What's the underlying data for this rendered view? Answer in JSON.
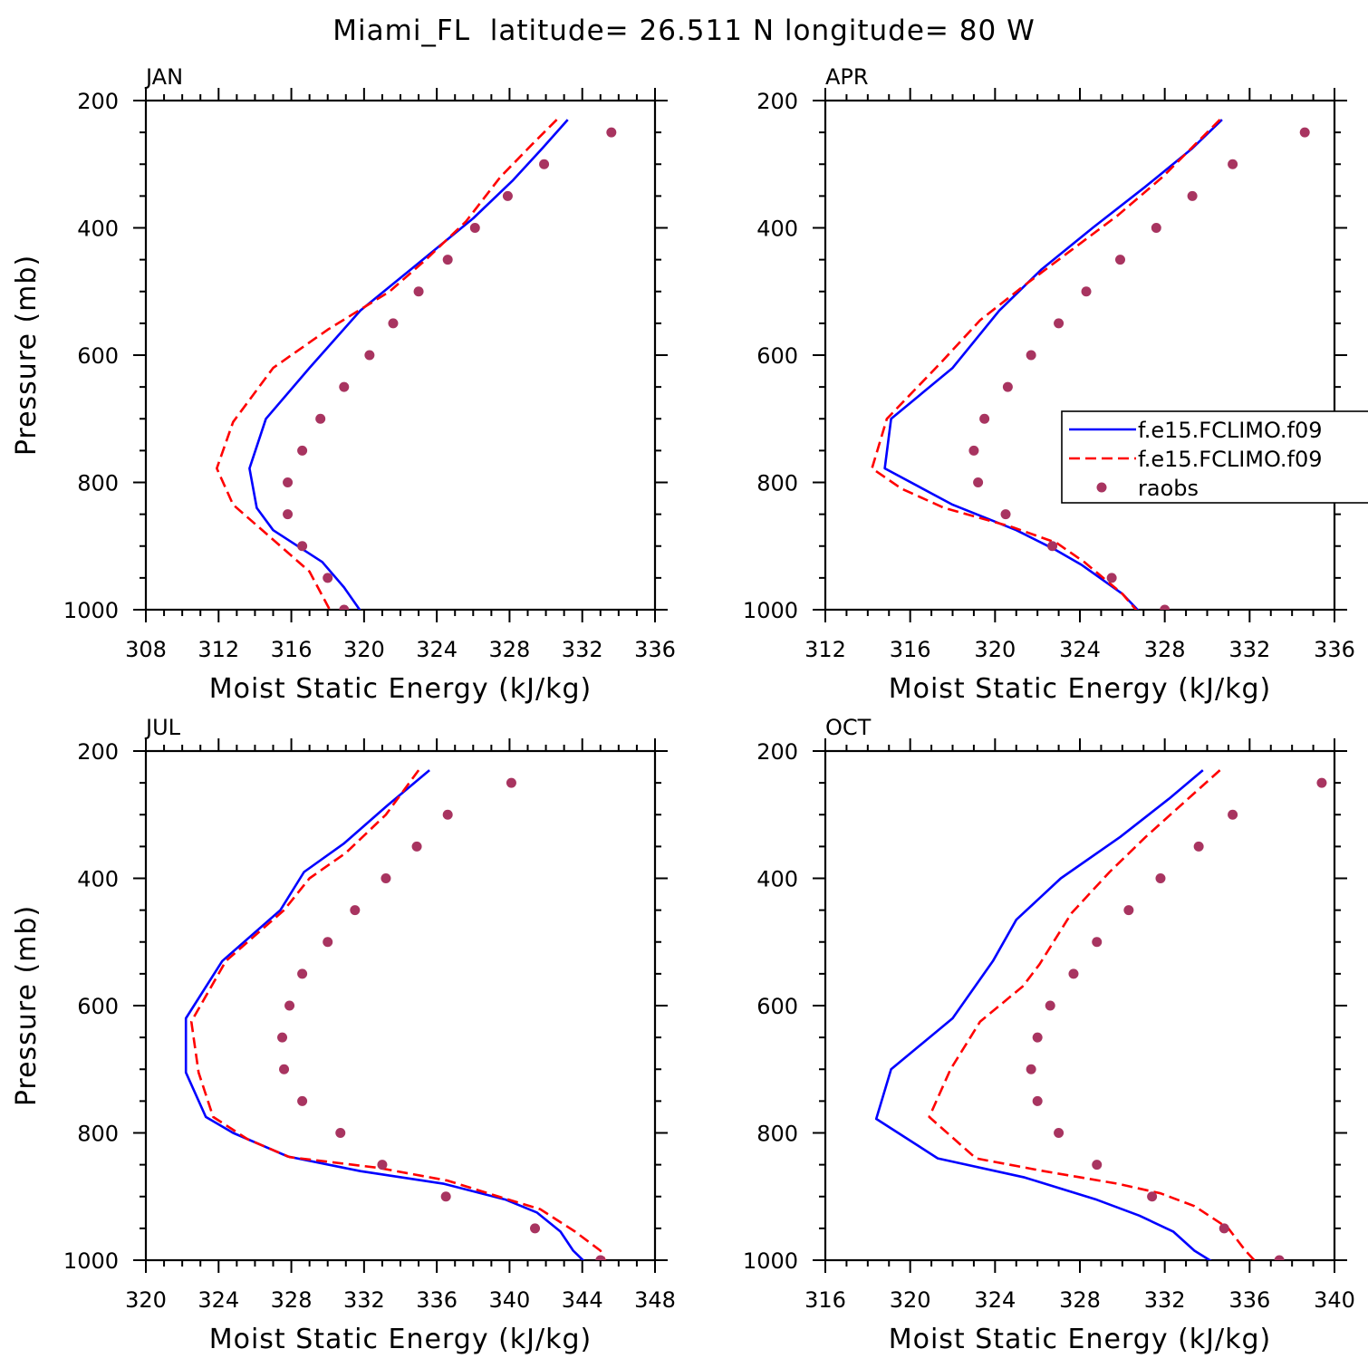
{
  "title": "Miami_FL  latitude= 26.511 N longitude= 80 W",
  "colors": {
    "model_a": "#0000ff",
    "model_b": "#ff0000",
    "raobs": "#a83460"
  },
  "legend": {
    "panel": 1,
    "entries": [
      "f.e15.FCLIMO.f09",
      "f.e15.FCLIMO.f09",
      "raobs"
    ]
  },
  "chart_data": [
    {
      "type": "line",
      "label": "JAN",
      "xlabel": "Moist Static Energy (kJ/kg)",
      "ylabel": "Pressure (mb)",
      "xlim": [
        308,
        336
      ],
      "xticks": [
        308,
        312,
        316,
        320,
        324,
        328,
        332,
        336
      ],
      "ylim": [
        1000,
        200
      ],
      "yticks": [
        200,
        400,
        600,
        800,
        1000
      ],
      "series": [
        {
          "key": "model_a",
          "style": "solid",
          "x": [
            331.2,
            329.8,
            328.2,
            326.0,
            322.8,
            319.8,
            317.0,
            314.6,
            313.7,
            314.1,
            315.0,
            317.7,
            318.9,
            320.0
          ],
          "y": [
            230,
            275,
            325,
            385,
            460,
            530,
            620,
            700,
            778,
            840,
            875,
            925,
            965,
            1010
          ]
        },
        {
          "key": "model_b",
          "style": "dashed",
          "x": [
            330.6,
            329.2,
            327.5,
            325.6,
            323.4,
            321.4,
            318.0,
            315.0,
            312.8,
            311.9,
            312.8,
            314.8,
            317.0,
            318.3
          ],
          "y": [
            230,
            270,
            320,
            390,
            450,
            500,
            560,
            620,
            705,
            778,
            835,
            885,
            940,
            1010
          ]
        },
        {
          "key": "raobs",
          "style": "points",
          "x": [
            333.6,
            329.9,
            327.9,
            326.1,
            324.6,
            323.0,
            321.6,
            320.3,
            318.9,
            317.6,
            316.6,
            315.8,
            315.8,
            316.6,
            318.0,
            318.9
          ],
          "y": [
            250,
            300,
            350,
            400,
            450,
            500,
            550,
            600,
            650,
            700,
            750,
            800,
            850,
            900,
            950,
            1000
          ]
        }
      ]
    },
    {
      "type": "line",
      "label": "APR",
      "xlabel": "Moist Static Energy (kJ/kg)",
      "ylabel": "",
      "xlim": [
        312,
        336
      ],
      "xticks": [
        312,
        316,
        320,
        324,
        328,
        332,
        336
      ],
      "ylim": [
        1000,
        200
      ],
      "yticks": [
        200,
        400,
        600,
        800,
        1000
      ],
      "series": [
        {
          "key": "model_a",
          "style": "solid",
          "x": [
            330.7,
            329.3,
            327.1,
            324.6,
            322.2,
            320.2,
            318.0,
            315.1,
            314.8,
            318.0,
            321.0,
            322.8,
            324.1,
            326.0,
            327.0
          ],
          "y": [
            230,
            275,
            335,
            400,
            465,
            530,
            620,
            700,
            778,
            835,
            875,
            905,
            930,
            975,
            1010
          ]
        },
        {
          "key": "model_b",
          "style": "dashed",
          "x": [
            330.6,
            329.4,
            327.9,
            325.8,
            323.6,
            321.4,
            319.3,
            317.5,
            314.9,
            314.2,
            315.6,
            317.6,
            320.8,
            322.9,
            324.2,
            326.0,
            326.9
          ],
          "y": [
            230,
            270,
            320,
            380,
            435,
            490,
            545,
            610,
            700,
            778,
            810,
            840,
            870,
            895,
            925,
            975,
            1010
          ]
        },
        {
          "key": "raobs",
          "style": "points",
          "x": [
            334.6,
            331.2,
            329.3,
            327.6,
            325.9,
            324.3,
            323.0,
            321.7,
            320.6,
            319.5,
            319.0,
            319.2,
            320.5,
            322.7,
            325.5,
            328.0
          ],
          "y": [
            250,
            300,
            350,
            400,
            450,
            500,
            550,
            600,
            650,
            700,
            750,
            800,
            850,
            900,
            950,
            1000
          ]
        }
      ]
    },
    {
      "type": "line",
      "label": "JUL",
      "xlabel": "Moist Static Energy (kJ/kg)",
      "ylabel": "Pressure (mb)",
      "xlim": [
        320,
        348
      ],
      "xticks": [
        320,
        324,
        328,
        332,
        336,
        340,
        344,
        348
      ],
      "ylim": [
        1000,
        200
      ],
      "yticks": [
        200,
        400,
        600,
        800,
        1000
      ],
      "series": [
        {
          "key": "model_a",
          "style": "solid",
          "x": [
            335.6,
            333.3,
            330.9,
            328.7,
            327.4,
            324.2,
            322.2,
            322.2,
            323.3,
            324.8,
            327.8,
            331.8,
            336.4,
            339.8,
            341.5,
            342.8,
            343.5,
            344.4
          ],
          "y": [
            230,
            285,
            345,
            390,
            450,
            530,
            620,
            705,
            775,
            800,
            837,
            860,
            880,
            905,
            925,
            955,
            985,
            1010
          ]
        },
        {
          "key": "model_b",
          "style": "dashed",
          "x": [
            335.0,
            333.2,
            331.0,
            329.0,
            327.6,
            324.4,
            322.5,
            322.9,
            323.7,
            325.6,
            327.9,
            332.8,
            336.6,
            339.4,
            341.7,
            343.6,
            345.0,
            345.4
          ],
          "y": [
            230,
            300,
            360,
            400,
            450,
            530,
            625,
            705,
            775,
            810,
            838,
            855,
            875,
            900,
            920,
            955,
            985,
            1010
          ]
        },
        {
          "key": "raobs",
          "style": "points",
          "x": [
            340.1,
            336.6,
            334.9,
            333.2,
            331.5,
            330.0,
            328.6,
            327.9,
            327.5,
            327.6,
            328.6,
            330.7,
            333.0,
            336.5,
            341.4,
            345.0
          ],
          "y": [
            250,
            300,
            350,
            400,
            450,
            500,
            550,
            600,
            650,
            700,
            750,
            800,
            850,
            900,
            950,
            1000
          ]
        }
      ]
    },
    {
      "type": "line",
      "label": "OCT",
      "xlabel": "Moist Static Energy (kJ/kg)",
      "ylabel": "",
      "xlim": [
        316,
        340
      ],
      "xticks": [
        316,
        320,
        324,
        328,
        332,
        336,
        340
      ],
      "ylim": [
        1000,
        200
      ],
      "yticks": [
        200,
        400,
        600,
        800,
        1000
      ],
      "series": [
        {
          "key": "model_a",
          "style": "solid",
          "x": [
            333.8,
            332.2,
            329.9,
            327.1,
            325.0,
            323.9,
            322.0,
            319.1,
            318.4,
            321.3,
            325.4,
            328.8,
            330.8,
            332.4,
            333.4,
            334.6
          ],
          "y": [
            230,
            275,
            335,
            400,
            465,
            530,
            620,
            700,
            778,
            840,
            870,
            905,
            930,
            955,
            985,
            1010
          ]
        },
        {
          "key": "model_b",
          "style": "dashed",
          "x": [
            334.6,
            333.1,
            331.1,
            329.4,
            327.6,
            326.1,
            325.3,
            323.3,
            321.9,
            320.9,
            323.1,
            326.3,
            329.8,
            331.8,
            333.4,
            335.0,
            335.8,
            336.5
          ],
          "y": [
            230,
            275,
            335,
            390,
            455,
            535,
            570,
            625,
            700,
            775,
            840,
            860,
            880,
            895,
            915,
            950,
            985,
            1010
          ]
        },
        {
          "key": "raobs",
          "style": "points",
          "x": [
            339.4,
            335.2,
            333.6,
            331.8,
            330.3,
            328.8,
            327.7,
            326.6,
            326.0,
            325.7,
            326.0,
            327.0,
            328.8,
            331.4,
            334.8,
            337.4
          ],
          "y": [
            250,
            300,
            350,
            400,
            450,
            500,
            550,
            600,
            650,
            700,
            750,
            800,
            850,
            900,
            950,
            1000
          ]
        }
      ]
    }
  ]
}
